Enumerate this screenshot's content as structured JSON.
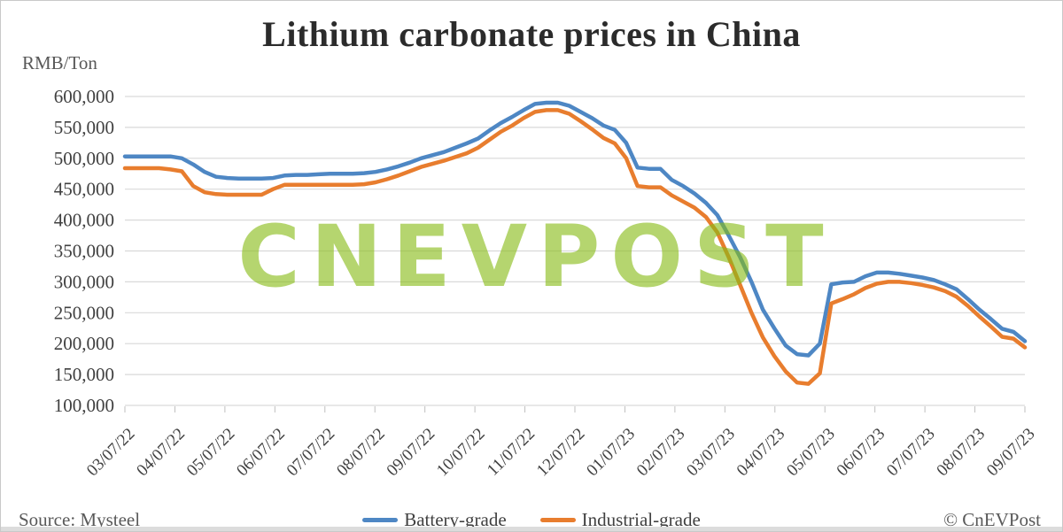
{
  "header": {
    "title": "Lithium carbonate prices in China",
    "y_unit": "RMB/Ton"
  },
  "watermark": "CNEVPOST",
  "footer": {
    "source": "Source: Mysteel",
    "copyright": "© CnEVPost"
  },
  "legend": [
    {
      "label": "Battery-grade",
      "color": "#4e87c4"
    },
    {
      "label": "Industrial-grade",
      "color": "#e87d2e"
    }
  ],
  "chart_data": {
    "type": "line",
    "title": "Lithium carbonate prices in China",
    "ylabel": "RMB/Ton",
    "xlabel": "",
    "ylim": [
      100000,
      600000
    ],
    "y_tick_step": 50000,
    "y_tick_labels": [
      "600,000",
      "550,000",
      "500,000",
      "450,000",
      "400,000",
      "350,000",
      "300,000",
      "250,000",
      "200,000",
      "150,000",
      "100,000"
    ],
    "grid": "horizontal",
    "legend_position": "bottom-center",
    "x_tick_labels": [
      "03/07/22",
      "04/07/22",
      "05/07/22",
      "06/07/22",
      "07/07/22",
      "08/07/22",
      "09/07/22",
      "10/07/22",
      "11/07/22",
      "12/07/22",
      "01/07/23",
      "02/07/23",
      "03/07/23",
      "04/07/23",
      "05/07/23",
      "06/07/23",
      "07/07/23",
      "08/07/23",
      "09/07/23"
    ],
    "x_sampling": "weekly points spanning evenly from first to last tick",
    "series": [
      {
        "name": "Battery-grade",
        "color": "#4e87c4",
        "values": [
          503000,
          503000,
          503000,
          503000,
          503000,
          500000,
          490000,
          478000,
          470000,
          468000,
          467000,
          467000,
          467000,
          468000,
          472000,
          473000,
          473000,
          474000,
          475000,
          475000,
          475000,
          476000,
          478000,
          482000,
          487000,
          493000,
          500000,
          505000,
          510000,
          517000,
          524000,
          532000,
          545000,
          557000,
          567000,
          578000,
          588000,
          590000,
          590000,
          585000,
          575000,
          565000,
          553000,
          546000,
          525000,
          485000,
          483000,
          483000,
          465000,
          455000,
          443000,
          428000,
          408000,
          375000,
          340000,
          300000,
          255000,
          225000,
          197000,
          183000,
          181000,
          200000,
          296000,
          299000,
          300000,
          309000,
          315000,
          315000,
          313000,
          310000,
          307000,
          303000,
          296000,
          288000,
          272000,
          255000,
          240000,
          224000,
          219000,
          204000
        ]
      },
      {
        "name": "Industrial-grade",
        "color": "#e87d2e",
        "values": [
          484000,
          484000,
          484000,
          484000,
          482000,
          479000,
          455000,
          445000,
          442000,
          441000,
          441000,
          441000,
          441000,
          450000,
          457000,
          457000,
          457000,
          457000,
          457000,
          457000,
          457000,
          458000,
          461000,
          466000,
          472000,
          479000,
          486000,
          491000,
          496000,
          502000,
          508000,
          517000,
          530000,
          543000,
          553000,
          565000,
          575000,
          578000,
          578000,
          572000,
          560000,
          547000,
          533000,
          524000,
          500000,
          455000,
          453000,
          453000,
          440000,
          430000,
          420000,
          405000,
          380000,
          340000,
          295000,
          250000,
          210000,
          180000,
          155000,
          137000,
          135000,
          152000,
          265000,
          272000,
          280000,
          290000,
          297000,
          300000,
          300000,
          298000,
          295000,
          291000,
          285000,
          276000,
          261000,
          244000,
          228000,
          211000,
          208000,
          194000
        ]
      }
    ]
  }
}
